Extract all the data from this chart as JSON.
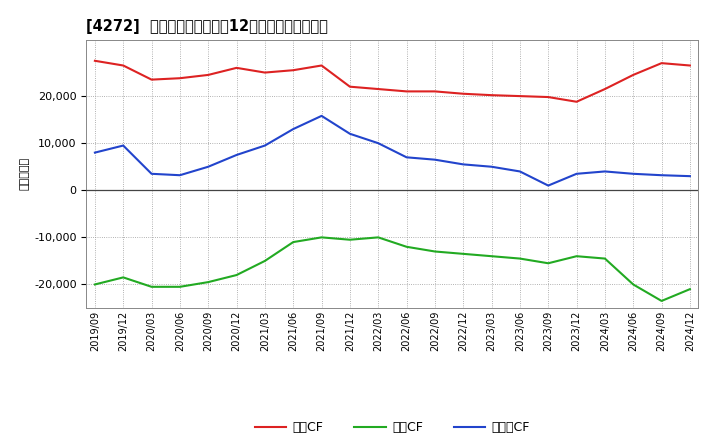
{
  "title": "[4272]  キャッシュフローの12か月移動合計の推移",
  "ylabel": "（百万円）",
  "background_color": "#ffffff",
  "plot_bg_color": "#ffffff",
  "grid_color": "#999999",
  "ylim": [
    -25000,
    32000
  ],
  "yticks": [
    -20000,
    -10000,
    0,
    10000,
    20000
  ],
  "legend_labels": [
    "営業CF",
    "投資CF",
    "フリーCF"
  ],
  "line_colors": [
    "#dd2222",
    "#22aa22",
    "#2244cc"
  ],
  "dates": [
    "2019/09",
    "2019/12",
    "2020/03",
    "2020/06",
    "2020/09",
    "2020/12",
    "2021/03",
    "2021/06",
    "2021/09",
    "2021/12",
    "2022/03",
    "2022/06",
    "2022/09",
    "2022/12",
    "2023/03",
    "2023/06",
    "2023/09",
    "2023/12",
    "2024/03",
    "2024/06",
    "2024/09",
    "2024/12"
  ],
  "operating_cf": [
    27500,
    26500,
    23500,
    23800,
    24500,
    26000,
    25000,
    25500,
    26500,
    22000,
    21500,
    21000,
    21000,
    20500,
    20200,
    20000,
    19800,
    18800,
    21500,
    24500,
    27000,
    26500
  ],
  "investing_cf": [
    -20000,
    -18500,
    -20500,
    -20500,
    -19500,
    -18000,
    -15000,
    -11000,
    -10000,
    -10500,
    -10000,
    -12000,
    -13000,
    -13500,
    -14000,
    -14500,
    -15500,
    -14000,
    -14500,
    -20000,
    -23500,
    -21000
  ],
  "free_cf": [
    8000,
    9500,
    3500,
    3200,
    5000,
    7500,
    9500,
    13000,
    15800,
    12000,
    10000,
    7000,
    6500,
    5500,
    5000,
    4000,
    1000,
    3500,
    4000,
    3500,
    3200,
    3000
  ]
}
